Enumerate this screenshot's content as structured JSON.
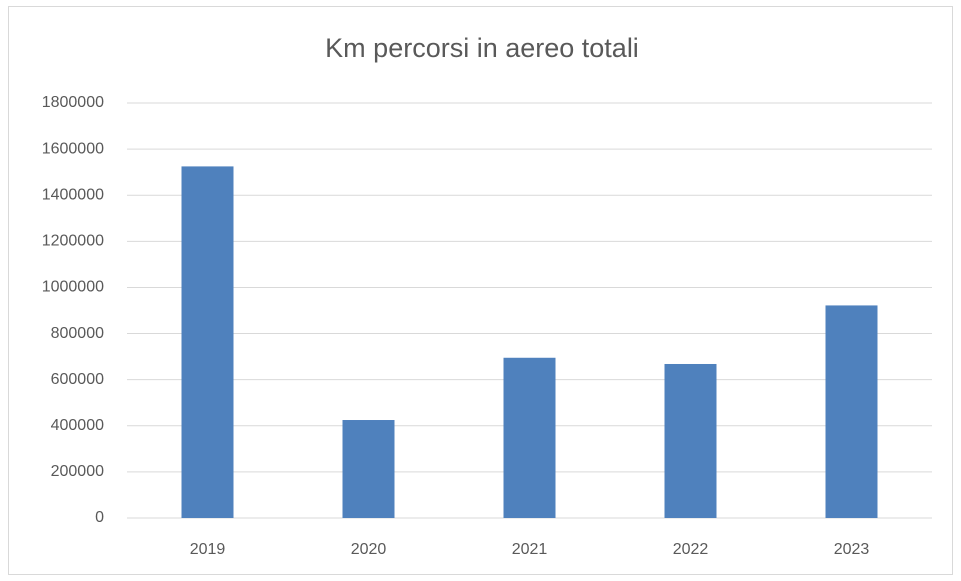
{
  "chart_data": {
    "type": "bar",
    "title": "Km percorsi in aereo totali",
    "categories": [
      "2019",
      "2020",
      "2021",
      "2022",
      "2023"
    ],
    "values": [
      1525000,
      425000,
      695000,
      668000,
      922000
    ],
    "color": "#4f81bd",
    "ylim": [
      0,
      1800000
    ],
    "yticks": [
      0,
      200000,
      400000,
      600000,
      800000,
      1000000,
      1200000,
      1400000,
      1600000,
      1800000
    ],
    "grid": true
  }
}
